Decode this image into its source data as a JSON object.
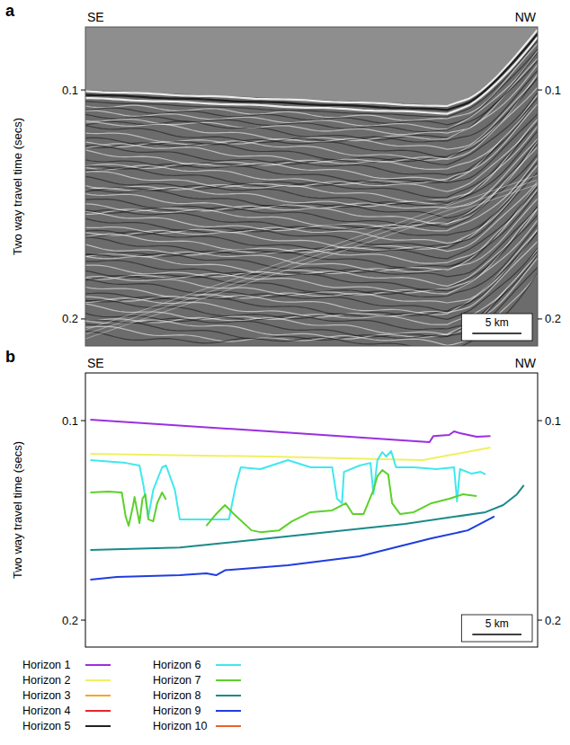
{
  "chart_data": [
    {
      "type": "seismic_section",
      "panel": "a",
      "y_label": "Two way travel time (secs)",
      "annotations": [
        "SE",
        "NW"
      ],
      "xlim": [
        0,
        46
      ],
      "ylim": [
        0.2118,
        0.0725
      ],
      "yticks": [
        0.1,
        0.2
      ],
      "scale_bar": {
        "value": 5,
        "label": "5 km"
      },
      "tick_labels": "y"
    },
    {
      "type": "line",
      "panel": "b",
      "y_label": "Two way travel time (secs)",
      "annotations": [
        "SE",
        "NW"
      ],
      "xlim": [
        0,
        46
      ],
      "ylim": [
        0.2135,
        0.0761
      ],
      "yticks": [
        0.1,
        0.2
      ],
      "scale_bar": {
        "value": 5,
        "label": "5 km"
      },
      "tick_labels": "y",
      "legend": "bottom",
      "series": [
        {
          "name": "Horizon 1",
          "color": "#9b2fe0",
          "x": [
            0.5,
            18.7,
            35.0,
            35.4,
            37.0,
            37.5,
            38.1,
            39.8,
            41.2
          ],
          "values": [
            0.0995,
            0.1054,
            0.1108,
            0.1077,
            0.1072,
            0.1054,
            0.1063,
            0.1081,
            0.1077
          ]
        },
        {
          "name": "Horizon 2",
          "color": "#f0f060",
          "x": [
            0.5,
            18.7,
            34.3,
            41.2
          ],
          "values": [
            0.1167,
            0.118,
            0.1198,
            0.1135
          ]
        },
        {
          "name": "Horizon 3",
          "color": "#f5a623",
          "x": [],
          "values": []
        },
        {
          "name": "Horizon 4",
          "color": "#e8262b",
          "x": [],
          "values": []
        },
        {
          "name": "Horizon 5",
          "color": "#222222",
          "x": [],
          "values": []
        },
        {
          "name": "Horizon 6",
          "color": "#3fe8ee",
          "x": [
            0.5,
            4.1,
            5.5,
            5.9,
            6.4,
            6.9,
            7.8,
            8.2,
            9.1,
            9.6,
            12.3,
            14.6,
            15.3,
            15.8,
            17.8,
            20.6,
            22.9,
            25.1,
            25.6,
            26.1,
            26.3,
            27.9,
            29.0,
            29.3,
            29.7,
            30.2,
            30.6,
            31.1,
            31.6,
            33.4,
            35.7,
            37.5,
            37.8,
            38.1,
            39.3,
            40.2,
            40.7
          ],
          "values": [
            0.1198,
            0.1212,
            0.1225,
            0.1324,
            0.1482,
            0.1347,
            0.1234,
            0.1225,
            0.1347,
            0.1495,
            0.1495,
            0.1495,
            0.1324,
            0.1234,
            0.1243,
            0.1198,
            0.1234,
            0.1234,
            0.1392,
            0.1414,
            0.1257,
            0.1225,
            0.1212,
            0.1369,
            0.1198,
            0.1158,
            0.118,
            0.1153,
            0.1234,
            0.1234,
            0.1243,
            0.1234,
            0.1405,
            0.1243,
            0.1266,
            0.1257,
            0.127
          ]
        },
        {
          "name": "Horizon 7",
          "color": "#5cd12a",
          "x": [
            0.5,
            2.3,
            3.7,
            4.1,
            4.4,
            4.8,
            5.0,
            5.5,
            5.8,
            6.1,
            6.4,
            6.9,
            7.3,
            7.8,
            8.2,
            null,
            12.3,
            13.3,
            14.2,
            15.1,
            16.9,
            17.8,
            19.7,
            21.0,
            22.9,
            25.1,
            26.5,
            27.2,
            28.3,
            29.3,
            29.7,
            30.2,
            30.8,
            31.2,
            32.0,
            33.4,
            35.2,
            37.0,
            38.4,
            39.8
          ],
          "values": [
            0.136,
            0.1356,
            0.136,
            0.1482,
            0.1527,
            0.1437,
            0.1383,
            0.1514,
            0.1392,
            0.1369,
            0.1495,
            0.1505,
            0.1414,
            0.136,
            0.1396,
            null,
            0.1527,
            0.1468,
            0.1423,
            0.1468,
            0.155,
            0.1559,
            0.155,
            0.1505,
            0.1459,
            0.145,
            0.1414,
            0.1468,
            0.1468,
            0.1347,
            0.1279,
            0.1248,
            0.127,
            0.1414,
            0.1468,
            0.1459,
            0.1414,
            0.1392,
            0.1369,
            0.1378
          ]
        },
        {
          "name": "Horizon 8",
          "color": "#1a8a8a",
          "x": [
            0.5,
            9.6,
            18.7,
            32.5,
            40.7,
            42.5,
            43.9,
            44.6
          ],
          "values": [
            0.1649,
            0.1636,
            0.159,
            0.1518,
            0.1459,
            0.1423,
            0.1369,
            0.1324
          ]
        },
        {
          "name": "Horizon 9",
          "color": "#1f3de0",
          "x": [
            0.5,
            3.2,
            9.6,
            12.3,
            13.3,
            14.2,
            20.6,
            27.9,
            35.2,
            38.9,
            41.6
          ],
          "values": [
            0.1797,
            0.1784,
            0.1775,
            0.1766,
            0.1775,
            0.175,
            0.1725,
            0.168,
            0.159,
            0.155,
            0.148
          ]
        },
        {
          "name": "Horizon 10",
          "color": "#e8632b",
          "x": [],
          "values": []
        }
      ]
    }
  ]
}
